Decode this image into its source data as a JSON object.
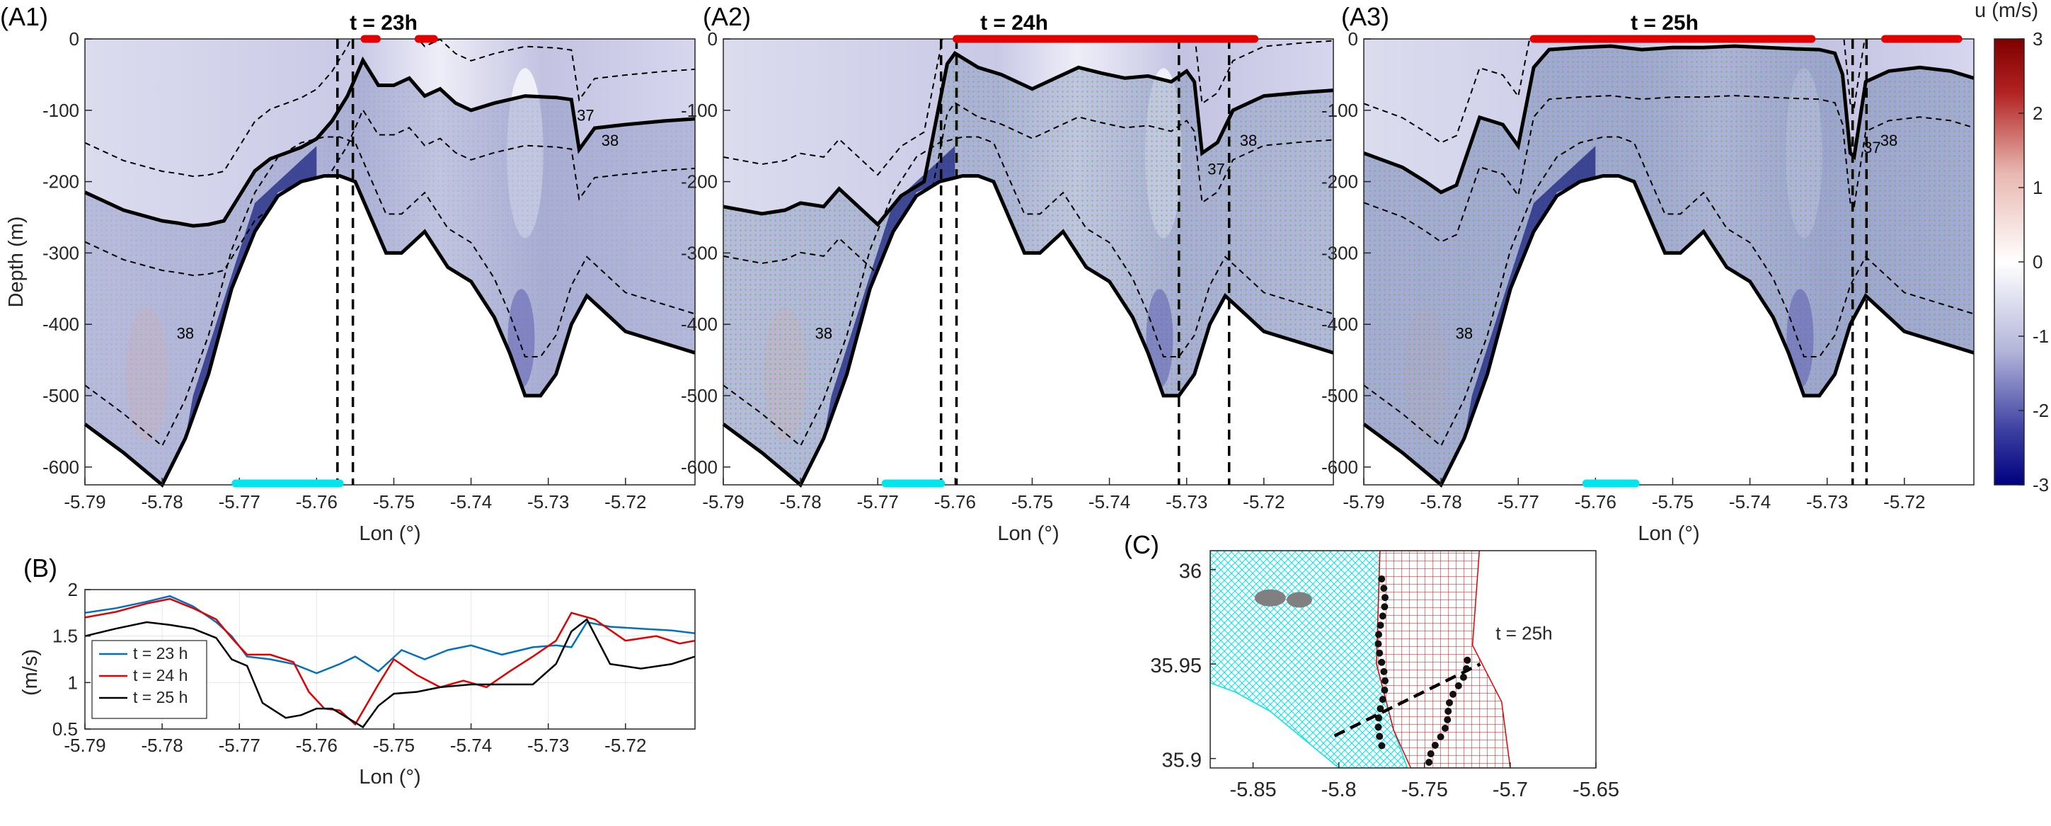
{
  "figure": {
    "panels": {
      "A1": {
        "label": "(A1)",
        "title": "t = 23h"
      },
      "A2": {
        "label": "(A2)",
        "title": "t = 24h"
      },
      "A3": {
        "label": "(A3)",
        "title": "t = 25h"
      },
      "B": {
        "label": "(B)"
      },
      "C": {
        "label": "(C)",
        "annotation": "t = 25h"
      }
    },
    "section_axes": {
      "xlabel": "Lon (°)",
      "ylabel": "Depth (m)",
      "xticks": [
        "-5.79",
        "-5.78",
        "-5.77",
        "-5.76",
        "-5.75",
        "-5.74",
        "-5.73",
        "-5.72"
      ],
      "yticks": [
        "0",
        "-100",
        "-200",
        "-300",
        "-400",
        "-500",
        "-600"
      ],
      "contour_labels": [
        "37",
        "38"
      ]
    },
    "colorbar": {
      "label": "u (m/s)",
      "ticks": [
        "3",
        "2",
        "1",
        "0",
        "-1",
        "-2",
        "-3"
      ],
      "colors": {
        "max": "#7f0000",
        "mid": "#ffffff",
        "min": "#00007f"
      }
    },
    "colors": {
      "blue": "#0072BD",
      "red": "#E50000",
      "black": "#000000",
      "cyan": "#00E5EE",
      "green": "#33cc33",
      "gray_patch": "#808080"
    },
    "legend_B": [
      "t = 23 h",
      "t = 24 h",
      "t = 25 h"
    ],
    "axis_B": {
      "xlabel": "Lon (°)",
      "ylabel": "(m/s)",
      "xticks": [
        "-5.79",
        "-5.78",
        "-5.77",
        "-5.76",
        "-5.75",
        "-5.74",
        "-5.73",
        "-5.72"
      ],
      "yticks": [
        "2",
        "1.5",
        "1",
        "0.5"
      ]
    },
    "axis_C": {
      "xticks": [
        "-5.85",
        "-5.8",
        "-5.75",
        "-5.7",
        "-5.65"
      ],
      "yticks": [
        "36",
        "35.95",
        "35.9"
      ]
    }
  },
  "chart_data": [
    {
      "panel": "A1",
      "type": "heatmap",
      "title": "t = 23h",
      "xlabel": "Lon (°)",
      "ylabel": "Depth (m)",
      "xlim": [
        -5.79,
        -5.711
      ],
      "ylim": [
        -625,
        0
      ],
      "bottom_depth": {
        "x": [
          -5.79,
          -5.785,
          -5.78,
          -5.777,
          -5.774,
          -5.771,
          -5.768,
          -5.765,
          -5.762,
          -5.759,
          -5.757,
          -5.755,
          -5.753,
          -5.751,
          -5.749,
          -5.746,
          -5.743,
          -5.74,
          -5.737,
          -5.735,
          -5.733,
          -5.731,
          -5.729,
          -5.727,
          -5.725,
          -5.723,
          -5.72,
          -5.717,
          -5.714,
          -5.711
        ],
        "y": [
          -540,
          -580,
          -625,
          -560,
          -470,
          -350,
          -270,
          -220,
          -200,
          -192,
          -192,
          -200,
          -250,
          -300,
          -300,
          -270,
          -320,
          -340,
          -390,
          -440,
          -500,
          -500,
          -470,
          -400,
          -360,
          -380,
          -410,
          -420,
          -430,
          -440
        ]
      },
      "isopycnal_37": {
        "x": [
          -5.79,
          -5.785,
          -5.78,
          -5.778,
          -5.776,
          -5.774,
          -5.772,
          -5.77,
          -5.768,
          -5.766,
          -5.764,
          -5.762,
          -5.76,
          -5.758,
          -5.756,
          -5.754,
          -5.752,
          -5.75,
          -5.748,
          -5.746,
          -5.744,
          -5.742,
          -5.74,
          -5.737,
          -5.733,
          -5.729,
          -5.727,
          -5.726,
          -5.724,
          -5.72,
          -5.715,
          -5.711
        ],
        "y": [
          -215,
          -240,
          -255,
          -258,
          -262,
          -260,
          -255,
          -220,
          -185,
          -168,
          -160,
          -152,
          -140,
          -115,
          -80,
          -30,
          -65,
          -65,
          -55,
          -80,
          -70,
          -90,
          -100,
          -90,
          -80,
          -82,
          -85,
          -155,
          -125,
          -120,
          -115,
          -112
        ]
      },
      "dashed_lines_lon": [
        -5.7573,
        -5.7553
      ],
      "red_bars_lon": [
        [
          -5.7538,
          -5.7522
        ],
        [
          -5.7468,
          -5.7448
        ]
      ],
      "cyan_bar_lon": [
        -5.7705,
        -5.757
      ]
    },
    {
      "panel": "A2",
      "type": "heatmap",
      "title": "t = 24h",
      "xlabel": "Lon (°)",
      "ylabel": "Depth (m)",
      "xlim": [
        -5.79,
        -5.711
      ],
      "ylim": [
        -625,
        0
      ],
      "bottom_depth": {
        "x": [
          -5.79,
          -5.785,
          -5.78,
          -5.777,
          -5.774,
          -5.771,
          -5.768,
          -5.765,
          -5.762,
          -5.759,
          -5.757,
          -5.755,
          -5.753,
          -5.751,
          -5.749,
          -5.746,
          -5.743,
          -5.74,
          -5.737,
          -5.735,
          -5.733,
          -5.731,
          -5.729,
          -5.727,
          -5.725,
          -5.723,
          -5.72,
          -5.717,
          -5.714,
          -5.711
        ],
        "y": [
          -540,
          -580,
          -625,
          -560,
          -470,
          -350,
          -270,
          -220,
          -200,
          -192,
          -192,
          -200,
          -250,
          -300,
          -300,
          -270,
          -320,
          -340,
          -390,
          -440,
          -500,
          -500,
          -470,
          -400,
          -360,
          -380,
          -410,
          -420,
          -430,
          -440
        ]
      },
      "isopycnal_37": {
        "x": [
          -5.79,
          -5.785,
          -5.782,
          -5.78,
          -5.777,
          -5.775,
          -5.772,
          -5.77,
          -5.767,
          -5.764,
          -5.762,
          -5.761,
          -5.76,
          -5.757,
          -5.754,
          -5.752,
          -5.75,
          -5.747,
          -5.744,
          -5.741,
          -5.738,
          -5.735,
          -5.732,
          -5.73,
          -5.729,
          -5.728,
          -5.726,
          -5.724,
          -5.72,
          -5.715,
          -5.711
        ],
        "y": [
          -235,
          -245,
          -240,
          -230,
          -235,
          -210,
          -240,
          -260,
          -220,
          -200,
          -90,
          -35,
          -20,
          -40,
          -50,
          -60,
          -70,
          -55,
          -40,
          -48,
          -55,
          -52,
          -60,
          -45,
          -60,
          -160,
          -145,
          -100,
          -80,
          -75,
          -72
        ]
      },
      "dashed_lines_lon": [
        -5.7618,
        -5.7598,
        -5.731,
        -5.7245
      ],
      "red_bars_lon": [
        [
          -5.7598,
          -5.7212
        ]
      ],
      "cyan_bar_lon": [
        -5.769,
        -5.7618
      ]
    },
    {
      "panel": "A3",
      "type": "heatmap",
      "title": "t = 25h",
      "xlabel": "Lon (°)",
      "ylabel": "Depth (m)",
      "xlim": [
        -5.79,
        -5.711
      ],
      "ylim": [
        -625,
        0
      ],
      "bottom_depth": {
        "x": [
          -5.79,
          -5.785,
          -5.78,
          -5.777,
          -5.774,
          -5.771,
          -5.768,
          -5.765,
          -5.762,
          -5.759,
          -5.757,
          -5.755,
          -5.753,
          -5.751,
          -5.749,
          -5.746,
          -5.743,
          -5.74,
          -5.737,
          -5.735,
          -5.733,
          -5.731,
          -5.729,
          -5.727,
          -5.725,
          -5.723,
          -5.72,
          -5.717,
          -5.714,
          -5.711
        ],
        "y": [
          -540,
          -580,
          -625,
          -560,
          -470,
          -350,
          -270,
          -220,
          -200,
          -192,
          -192,
          -200,
          -250,
          -300,
          -300,
          -270,
          -320,
          -340,
          -390,
          -440,
          -500,
          -500,
          -470,
          -400,
          -360,
          -380,
          -410,
          -420,
          -430,
          -440
        ]
      },
      "isopycnal_37": {
        "x": [
          -5.79,
          -5.785,
          -5.782,
          -5.78,
          -5.778,
          -5.775,
          -5.772,
          -5.77,
          -5.768,
          -5.766,
          -5.762,
          -5.758,
          -5.754,
          -5.75,
          -5.746,
          -5.742,
          -5.738,
          -5.734,
          -5.731,
          -5.729,
          -5.728,
          -5.727,
          -5.7265,
          -5.726,
          -5.725,
          -5.722,
          -5.718,
          -5.714,
          -5.711
        ],
        "y": [
          -160,
          -180,
          -200,
          -215,
          -205,
          -110,
          -120,
          -150,
          -40,
          -15,
          -12,
          -10,
          -15,
          -12,
          -12,
          -10,
          -12,
          -14,
          -15,
          -20,
          -50,
          -160,
          -165,
          -130,
          -60,
          -45,
          -40,
          -45,
          -55
        ]
      },
      "dashed_lines_lon": [
        -5.7267,
        -5.7249
      ],
      "red_bars_lon": [
        [
          -5.768,
          -5.732
        ],
        [
          -5.7225,
          -5.713
        ]
      ],
      "cyan_bar_lon": [
        -5.7612,
        -5.7548
      ]
    },
    {
      "panel": "B",
      "type": "line",
      "xlabel": "Lon (°)",
      "ylabel": "(m/s)",
      "xlim": [
        -5.79,
        -5.711
      ],
      "ylim": [
        0.5,
        2
      ],
      "legend": "bottom-left",
      "series": [
        {
          "name": "t = 23 h",
          "color": "#0072BD",
          "x": [
            -5.79,
            -5.786,
            -5.782,
            -5.779,
            -5.776,
            -5.773,
            -5.771,
            -5.769,
            -5.766,
            -5.763,
            -5.76,
            -5.757,
            -5.755,
            -5.752,
            -5.749,
            -5.746,
            -5.743,
            -5.74,
            -5.736,
            -5.732,
            -5.729,
            -5.727,
            -5.725,
            -5.722,
            -5.718,
            -5.714,
            -5.711
          ],
          "y": [
            1.75,
            1.8,
            1.87,
            1.93,
            1.82,
            1.65,
            1.5,
            1.28,
            1.25,
            1.2,
            1.1,
            1.2,
            1.28,
            1.12,
            1.35,
            1.25,
            1.35,
            1.4,
            1.3,
            1.38,
            1.4,
            1.38,
            1.65,
            1.6,
            1.58,
            1.56,
            1.53
          ]
        },
        {
          "name": "t = 24 h",
          "color": "#E50000",
          "x": [
            -5.79,
            -5.786,
            -5.782,
            -5.779,
            -5.776,
            -5.773,
            -5.771,
            -5.769,
            -5.766,
            -5.763,
            -5.761,
            -5.759,
            -5.757,
            -5.755,
            -5.752,
            -5.75,
            -5.747,
            -5.744,
            -5.741,
            -5.738,
            -5.735,
            -5.732,
            -5.729,
            -5.727,
            -5.724,
            -5.72,
            -5.716,
            -5.713,
            -5.711
          ],
          "y": [
            1.7,
            1.76,
            1.85,
            1.9,
            1.8,
            1.68,
            1.48,
            1.3,
            1.3,
            1.22,
            0.9,
            0.72,
            0.7,
            0.55,
            0.98,
            1.25,
            1.08,
            0.95,
            1.02,
            0.95,
            1.12,
            1.28,
            1.45,
            1.75,
            1.68,
            1.45,
            1.5,
            1.42,
            1.45
          ]
        },
        {
          "name": "t = 25 h",
          "color": "#000000",
          "x": [
            -5.79,
            -5.786,
            -5.782,
            -5.779,
            -5.776,
            -5.773,
            -5.771,
            -5.769,
            -5.767,
            -5.764,
            -5.762,
            -5.76,
            -5.758,
            -5.756,
            -5.754,
            -5.752,
            -5.75,
            -5.747,
            -5.744,
            -5.74,
            -5.736,
            -5.732,
            -5.729,
            -5.727,
            -5.725,
            -5.722,
            -5.718,
            -5.714,
            -5.711
          ],
          "y": [
            1.5,
            1.58,
            1.65,
            1.62,
            1.58,
            1.48,
            1.25,
            1.18,
            0.78,
            0.62,
            0.65,
            0.72,
            0.72,
            0.62,
            0.52,
            0.75,
            0.88,
            0.9,
            0.95,
            0.98,
            0.98,
            0.98,
            1.2,
            1.55,
            1.68,
            1.2,
            1.15,
            1.2,
            1.28
          ]
        }
      ]
    },
    {
      "panel": "C",
      "type": "map",
      "xlim": [
        -5.875,
        -5.65
      ],
      "ylim": [
        35.895,
        36.01
      ],
      "transect": {
        "x": [
          -5.8025,
          -5.7175
        ],
        "y": [
          35.912,
          35.95
        ]
      },
      "front_line_lon": [
        -5.775,
        -5.775
      ]
    }
  ]
}
